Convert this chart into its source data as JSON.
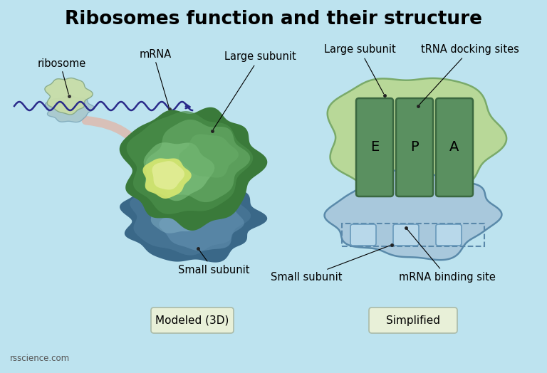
{
  "title": "Ribosomes function and their structure",
  "title_fontsize": 19,
  "background_color": "#bde3ef",
  "label_ribosome": "ribosome",
  "label_mrna": "mRNA",
  "label_large_subunit": "Large subunit",
  "label_trna_docking": "tRNA docking sites",
  "label_small_subunit": "Small subunit",
  "label_mrna_binding": "mRNA binding site",
  "label_modeled": "Modeled (3D)",
  "label_simplified": "Simplified",
  "label_e": "E",
  "label_p": "P",
  "label_a": "A",
  "label_credit": "rsscience.com",
  "color_wave": "#2a2a8a",
  "color_arrow_curved": "#d8c0b8",
  "color_ribosome_top": "#c8dda8",
  "color_ribosome_bot": "#a8c8cc",
  "color_green_dark1": "#3a7a3a",
  "color_green_dark2": "#4a8e4a",
  "color_green_mid": "#6aae6a",
  "color_green_light": "#8acc8a",
  "color_yellow_green": "#d8e870",
  "color_yellow_pale": "#e8f0a0",
  "color_blue_dark1": "#3a6888",
  "color_blue_dark2": "#4a7898",
  "color_blue_mid": "#6a98b8",
  "color_blue_light": "#8ab8cc",
  "color_large_green": "#b8d898",
  "color_large_green_edge": "#7aaa6a",
  "color_small_blue": "#a8c8dc",
  "color_small_blue_edge": "#5a8aaa",
  "color_epa_fill": "#5a9060",
  "color_epa_edge": "#3a6840",
  "color_mrna_box_fill": "#a8c8dc",
  "color_mrna_box_edge": "#5a88aa",
  "color_label_box": "#e8f0d8",
  "color_label_box_edge": "#aabba8"
}
